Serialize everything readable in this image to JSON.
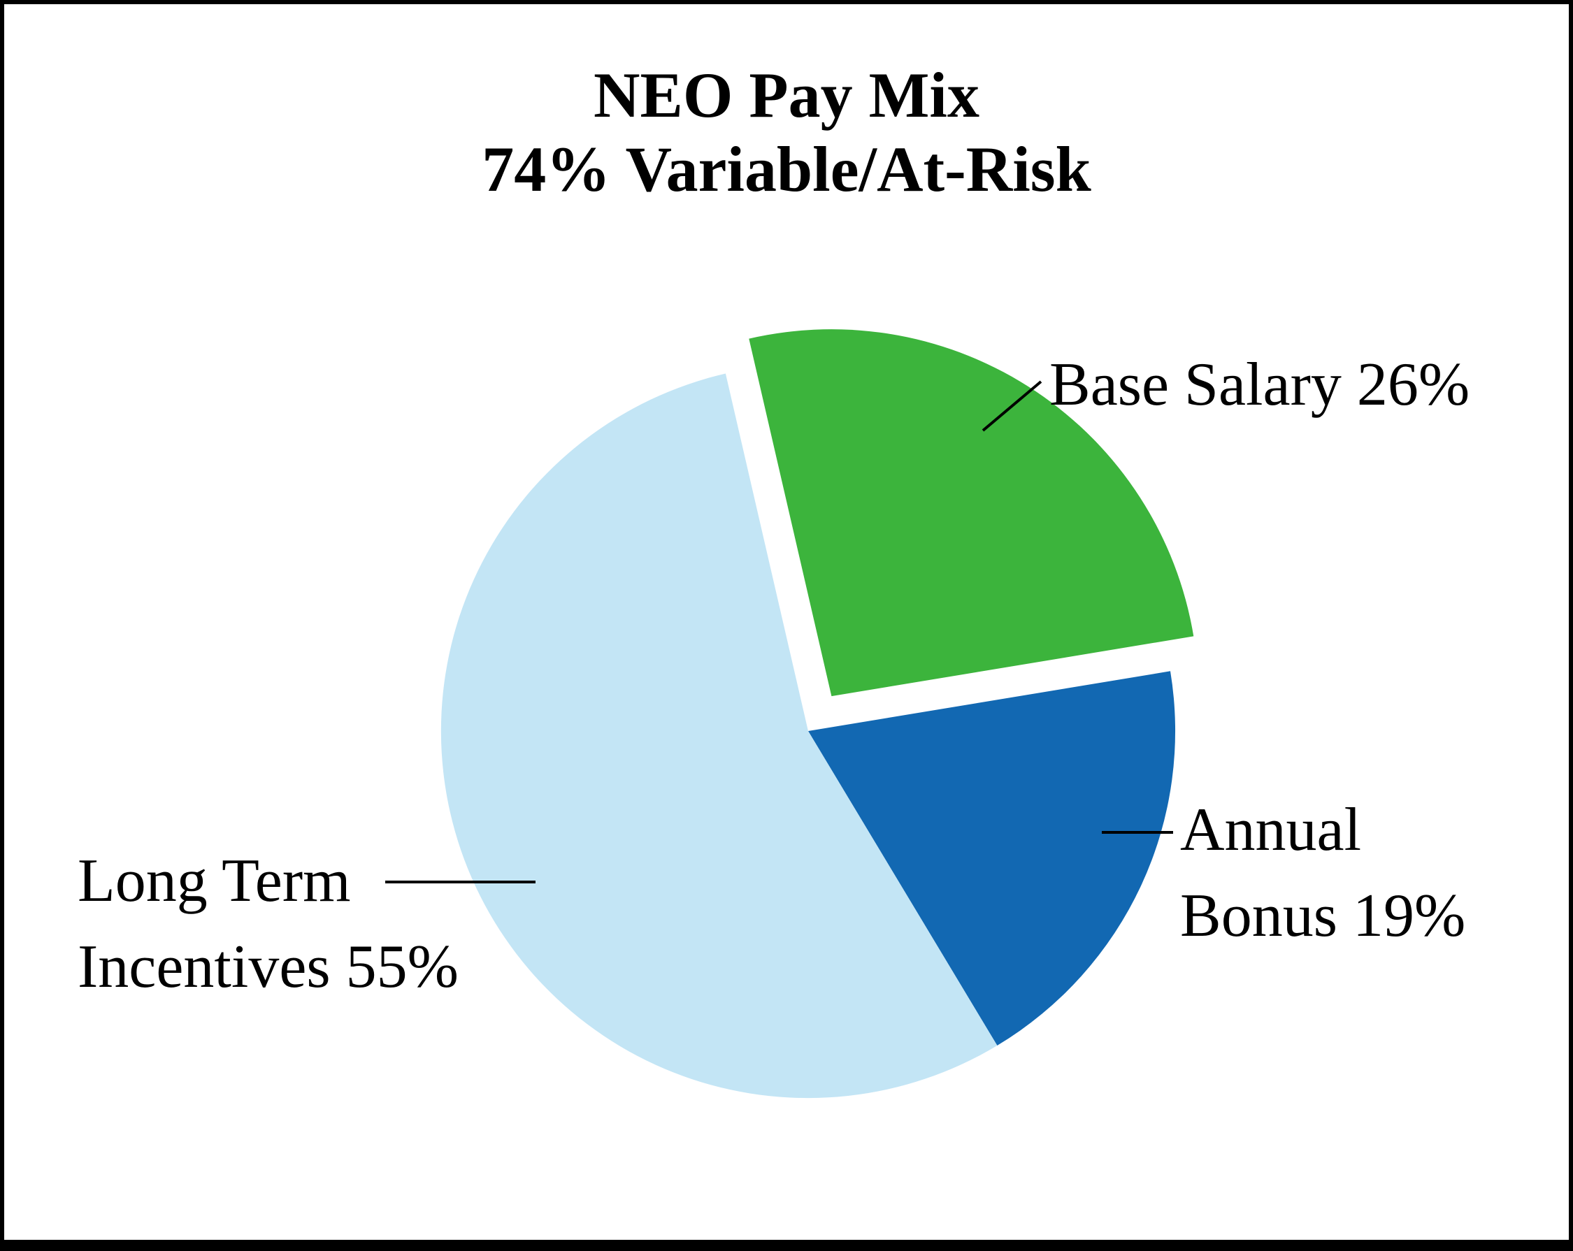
{
  "chart_data": {
    "type": "pie",
    "title": "NEO Pay Mix 74% Variable/At-Risk",
    "title_lines": [
      "NEO Pay Mix",
      "74% Variable/At-Risk"
    ],
    "legend_position": "none",
    "start_angle_deg": -13,
    "direction": "clockwise",
    "slices": [
      {
        "label": "Base Salary",
        "value": 26,
        "color": "#3cb43c",
        "exploded": true
      },
      {
        "label": "Annual Bonus",
        "value": 19,
        "color": "#1268b2",
        "exploded": false
      },
      {
        "label": "Long Term Incentives",
        "value": 55,
        "color": "#c3e5f5",
        "exploded": false
      }
    ],
    "annotations": [
      {
        "slice": "Base Salary",
        "text_lines": [
          "Base Salary 26%"
        ]
      },
      {
        "slice": "Annual Bonus",
        "text_lines": [
          "Annual",
          "Bonus 19%"
        ]
      },
      {
        "slice": "Long Term Incentives",
        "text_lines": [
          "Long Term",
          "Incentives 55%"
        ]
      }
    ],
    "colors": {
      "base_salary": "#3cb43c",
      "annual_bonus": "#1268b2",
      "long_term_incentives": "#c3e5f5",
      "border": "#000000",
      "background": "#ffffff"
    }
  }
}
